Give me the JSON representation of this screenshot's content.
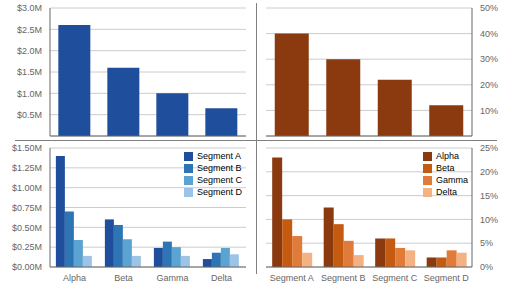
{
  "chart_data": [
    {
      "type": "bar",
      "categories": [
        null,
        null,
        null,
        null
      ],
      "values": [
        2.6,
        1.6,
        1.0,
        0.65
      ],
      "color": "#1F4E9C",
      "ylim": [
        0,
        3.0
      ],
      "yticks": [
        {
          "value": 0.5,
          "label": "$0.5M"
        },
        {
          "value": 1.0,
          "label": "$1.0M"
        },
        {
          "value": 1.5,
          "label": "$1.5M"
        },
        {
          "value": 2.0,
          "label": "$2.0M"
        },
        {
          "value": 2.5,
          "label": "$2.5M"
        },
        {
          "value": 3.0,
          "label": "$3.0M"
        }
      ],
      "grid": true,
      "tick_labels": "y"
    },
    {
      "type": "bar",
      "categories": [
        null,
        null,
        null,
        null
      ],
      "values": [
        0.4,
        0.3,
        0.22,
        0.12
      ],
      "color": "#8B3A10",
      "ylim": [
        0,
        0.5
      ],
      "yticks": [
        {
          "value": 0.1,
          "label": "10%"
        },
        {
          "value": 0.2,
          "label": "20%"
        },
        {
          "value": 0.3,
          "label": "30%"
        },
        {
          "value": 0.4,
          "label": "40%"
        },
        {
          "value": 0.5,
          "label": "50%"
        }
      ],
      "grid": true,
      "tick_labels": "y"
    },
    {
      "type": "bar",
      "categories": [
        "Alpha",
        "Beta",
        "Gamma",
        "Delta"
      ],
      "series": [
        {
          "name": "Segment A",
          "color": "#1F4E9C",
          "values": [
            1.4,
            0.6,
            0.24,
            0.1
          ]
        },
        {
          "name": "Segment B",
          "color": "#2E75B6",
          "values": [
            0.7,
            0.53,
            0.32,
            0.18
          ]
        },
        {
          "name": "Segment C",
          "color": "#5BA3D0",
          "values": [
            0.34,
            0.35,
            0.25,
            0.24
          ]
        },
        {
          "name": "Segment D",
          "color": "#9DC3E6",
          "values": [
            0.14,
            0.14,
            0.14,
            0.16
          ]
        }
      ],
      "ylim": [
        0,
        1.5
      ],
      "yticks": [
        {
          "value": 0.0,
          "label": "$0.00M"
        },
        {
          "value": 0.25,
          "label": "$0.25M"
        },
        {
          "value": 0.5,
          "label": "$0.50M"
        },
        {
          "value": 0.75,
          "label": "$0.75M"
        },
        {
          "value": 1.0,
          "label": "$1.00M"
        },
        {
          "value": 1.25,
          "label": "$1.25M"
        },
        {
          "value": 1.5,
          "label": "$1.50M"
        }
      ],
      "grid": true,
      "legend": "upper right"
    },
    {
      "type": "bar",
      "categories": [
        "Segment A",
        "Segment B",
        "Segment C",
        "Segment D"
      ],
      "series": [
        {
          "name": "Alpha",
          "color": "#8B3A10",
          "values": [
            0.23,
            0.125,
            0.06,
            0.02
          ]
        },
        {
          "name": "Beta",
          "color": "#C55A11",
          "values": [
            0.1,
            0.09,
            0.06,
            0.02
          ]
        },
        {
          "name": "Gamma",
          "color": "#E07B39",
          "values": [
            0.065,
            0.055,
            0.04,
            0.035
          ]
        },
        {
          "name": "Delta",
          "color": "#F4B183",
          "values": [
            0.03,
            0.025,
            0.035,
            0.03
          ]
        }
      ],
      "ylim": [
        0,
        0.25
      ],
      "yticks": [
        {
          "value": 0.0,
          "label": "0%"
        },
        {
          "value": 0.05,
          "label": "5%"
        },
        {
          "value": 0.1,
          "label": "10%"
        },
        {
          "value": 0.15,
          "label": "15%"
        },
        {
          "value": 0.2,
          "label": "20%"
        },
        {
          "value": 0.25,
          "label": "25%"
        }
      ],
      "grid": true,
      "legend": "upper right"
    }
  ]
}
